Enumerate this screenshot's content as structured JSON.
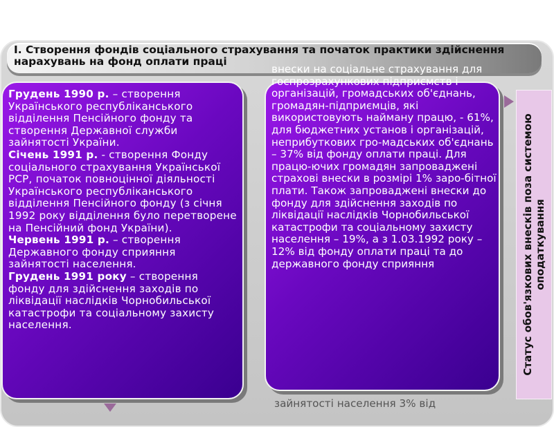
{
  "header": {
    "title": "І. Створення фондів соціального страхування та  початок практики здійснення нарахувань на фонд оплати праці"
  },
  "left_box": {
    "items": [
      {
        "date": "Грудень 1990 р.",
        "text": " – створення Українського республіканського відділення Пенсійного фонду та створення Державної служби зайнятості України."
      },
      {
        "date": "Січень 1991 р.",
        "text": " - створення Фонду соціального страхування Української РСР, початок повноцінної діяльності Українського республіканського відділення Пенсійного фонду (з січня 1992 року відділення було перетворене на Пенсійний фонд України)."
      },
      {
        "date": "Червень 1991 р.",
        "text": " – створення Державного фонду сприяння зайнятості населення."
      },
      {
        "date": "Грудень 1991 року",
        "text": " – створення фонду для здійснення заходів по ліквідації наслідків Чорнобильської катастрофи та соціальному захисту населення."
      }
    ]
  },
  "middle_box": {
    "text": "внески на соціальне страхування для госпрозрахункових підприємств і організацій, громадських об'єднань, громадян-підприємців, які використовують найману працю, - 61%, для бюджетних установ і організацій, неприбуткових гро-мадських об'єднань – 37% від фонду оплати праці. Для працю-ючих громадян запроваджені страхові внески в розмірі 1% заро-бітної плати. Також запроваджені внески до фонду для здійснення заходів по ліквідації наслідків Чорнобильської катастрофи та соціальному захисту населення – 19%, а з 1.03.1992 року – 12% від фонду оплати праці та до державного фонду сприяння",
    "overflow": "зайнятості населення 3% від"
  },
  "right_panel": {
    "text": "Статус обов'язкових внесків поза системою оподаткування"
  },
  "colors": {
    "box_start": "#9a18e8",
    "box_end": "#3a0090",
    "side_panel": "#e8c8e8"
  }
}
